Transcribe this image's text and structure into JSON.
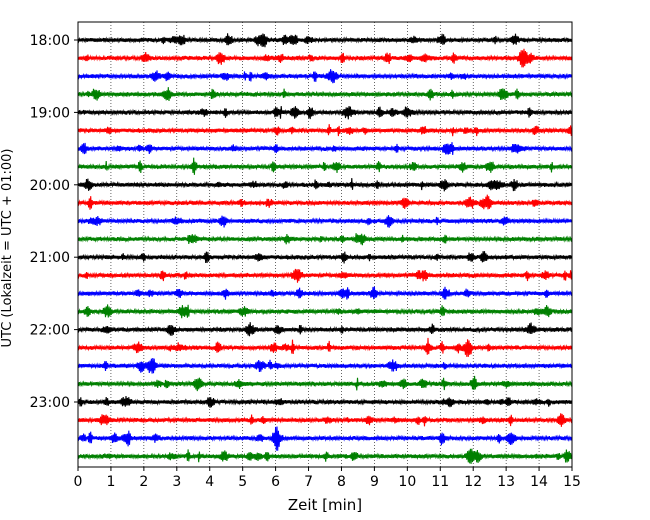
{
  "chart_data": {
    "type": "line",
    "title": "",
    "xlabel": "Zeit  [min]",
    "ylabel": "UTC (Lokalzeit = UTC + 01:00)",
    "xlim": [
      0,
      15
    ],
    "x_ticks": [
      0,
      1,
      2,
      3,
      4,
      5,
      6,
      7,
      8,
      9,
      10,
      11,
      12,
      13,
      14,
      15
    ],
    "x_tick_labels": [
      "0",
      "1",
      "2",
      "3",
      "4",
      "5",
      "6",
      "7",
      "8",
      "9",
      "10",
      "11",
      "12",
      "13",
      "14",
      "15"
    ],
    "y_tick_labels": [
      "18:00",
      "19:00",
      "20:00",
      "21:00",
      "22:00",
      "23:00"
    ],
    "grid": "vertical dotted at every minute",
    "trace_interval_minutes": 15,
    "start_time_utc": "18:00",
    "trace_color_cycle": [
      "#000000",
      "#ff0000",
      "#0000ff",
      "#008000"
    ],
    "series": [
      {
        "start": "18:00",
        "color": "#000000"
      },
      {
        "start": "18:15",
        "color": "#ff0000"
      },
      {
        "start": "18:30",
        "color": "#0000ff"
      },
      {
        "start": "18:45",
        "color": "#008000"
      },
      {
        "start": "19:00",
        "color": "#000000"
      },
      {
        "start": "19:15",
        "color": "#ff0000"
      },
      {
        "start": "19:30",
        "color": "#0000ff"
      },
      {
        "start": "19:45",
        "color": "#008000"
      },
      {
        "start": "20:00",
        "color": "#000000"
      },
      {
        "start": "20:15",
        "color": "#ff0000"
      },
      {
        "start": "20:30",
        "color": "#0000ff"
      },
      {
        "start": "20:45",
        "color": "#008000"
      },
      {
        "start": "21:00",
        "color": "#000000"
      },
      {
        "start": "21:15",
        "color": "#ff0000"
      },
      {
        "start": "21:30",
        "color": "#0000ff"
      },
      {
        "start": "21:45",
        "color": "#008000"
      },
      {
        "start": "22:00",
        "color": "#000000"
      },
      {
        "start": "22:15",
        "color": "#ff0000"
      },
      {
        "start": "22:30",
        "color": "#0000ff"
      },
      {
        "start": "22:45",
        "color": "#008000"
      },
      {
        "start": "23:00",
        "color": "#000000"
      },
      {
        "start": "23:15",
        "color": "#ff0000"
      },
      {
        "start": "23:30",
        "color": "#0000ff"
      },
      {
        "start": "23:45",
        "color": "#008000"
      }
    ]
  }
}
